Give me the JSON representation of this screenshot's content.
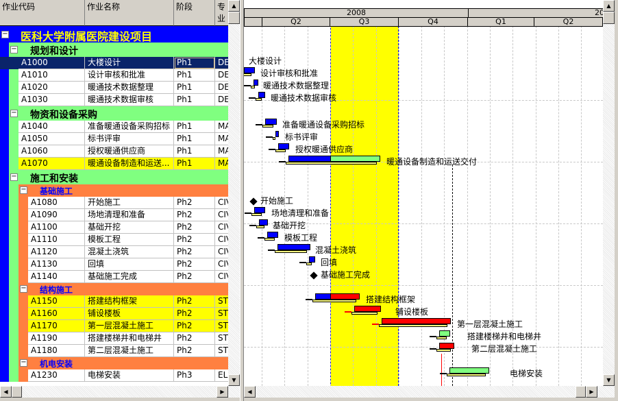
{
  "columns": {
    "code": "作业代码",
    "name": "作业名称",
    "phase": "阶段",
    "discipline": "专业"
  },
  "colors": {
    "project": "#0000ff",
    "level1": "#80ff80",
    "level2": "#ff8040",
    "critical": "#ffff00",
    "selected": "#0a246a",
    "bar_normal": "#0000ff",
    "bar_critical": "#ff0000",
    "bar_remaining": "#80ff80",
    "highlight_period": "#ffff00"
  },
  "rows": [
    {
      "type": "project",
      "title": "医科大学附属医院建设项目",
      "toggle": "−"
    },
    {
      "type": "group1",
      "title": "规划和设计",
      "toggle": "−"
    },
    {
      "type": "task",
      "code": "A1000",
      "name": "大楼设计",
      "phase": "Ph1",
      "disc": "DES",
      "selected": true
    },
    {
      "type": "task",
      "code": "A1010",
      "name": "设计审核和批准",
      "phase": "Ph1",
      "disc": "DES"
    },
    {
      "type": "task",
      "code": "A1020",
      "name": "暖通技术数据整理",
      "phase": "Ph1",
      "disc": "DES"
    },
    {
      "type": "task",
      "code": "A1030",
      "name": "暖通技术数据审核",
      "phase": "Ph1",
      "disc": "DES"
    },
    {
      "type": "group1",
      "title": "物资和设备采购",
      "toggle": "−"
    },
    {
      "type": "task",
      "code": "A1040",
      "name": "准备暖通设备采购招标",
      "phase": "Ph1",
      "disc": "MA"
    },
    {
      "type": "task",
      "code": "A1050",
      "name": "标书评审",
      "phase": "Ph1",
      "disc": "MA"
    },
    {
      "type": "task",
      "code": "A1060",
      "name": "授权暖通供应商",
      "phase": "Ph1",
      "disc": "MA"
    },
    {
      "type": "task",
      "code": "A1070",
      "name": "暖通设备制造和运送交付",
      "name_display": "暖通设备制造和运送...",
      "phase": "Ph1",
      "disc": "MA",
      "critical": true
    },
    {
      "type": "group1",
      "title": "施工和安装",
      "toggle": "−"
    },
    {
      "type": "group2",
      "title": "基础施工",
      "toggle": "−"
    },
    {
      "type": "task2",
      "code": "A1080",
      "name": "开始施工",
      "phase": "Ph2",
      "disc": "CIV"
    },
    {
      "type": "task2",
      "code": "A1090",
      "name": "场地清理和准备",
      "phase": "Ph2",
      "disc": "CIV"
    },
    {
      "type": "task2",
      "code": "A1100",
      "name": "基础开挖",
      "phase": "Ph2",
      "disc": "CIV"
    },
    {
      "type": "task2",
      "code": "A1110",
      "name": "模板工程",
      "phase": "Ph2",
      "disc": "CIV"
    },
    {
      "type": "task2",
      "code": "A1120",
      "name": "混凝土浇筑",
      "phase": "Ph2",
      "disc": "CIV"
    },
    {
      "type": "task2",
      "code": "A1130",
      "name": "回填",
      "phase": "Ph2",
      "disc": "CIV"
    },
    {
      "type": "task2",
      "code": "A1140",
      "name": "基础施工完成",
      "phase": "Ph2",
      "disc": "CIV"
    },
    {
      "type": "group2",
      "title": "结构施工",
      "toggle": "−"
    },
    {
      "type": "task2",
      "code": "A1150",
      "name": "搭建结构框架",
      "phase": "Ph2",
      "disc": "STR",
      "critical": true
    },
    {
      "type": "task2",
      "code": "A1160",
      "name": "铺设楼板",
      "phase": "Ph2",
      "disc": "STR",
      "critical": true
    },
    {
      "type": "task2",
      "code": "A1170",
      "name": "第一层混凝土施工",
      "phase": "Ph2",
      "disc": "STR",
      "critical": true
    },
    {
      "type": "task2",
      "code": "A1190",
      "name": "搭建楼梯井和电梯井",
      "phase": "Ph2",
      "disc": "STR"
    },
    {
      "type": "task2",
      "code": "A1180",
      "name": "第二层混凝土施工",
      "phase": "Ph2",
      "disc": "STR"
    },
    {
      "type": "group2",
      "title": "机电安装",
      "toggle": "−"
    },
    {
      "type": "task2",
      "code": "A1230",
      "name": "电梯安装",
      "phase": "Ph3",
      "disc": "ELE"
    }
  ],
  "timescale": {
    "years": [
      "2008",
      "20"
    ],
    "quarters": [
      "Q2",
      "Q3",
      "Q4",
      "Q1",
      "Q2"
    ]
  },
  "scrollbars": {
    "up": "▲",
    "down": "▼",
    "left": "◀",
    "right": "▶"
  }
}
